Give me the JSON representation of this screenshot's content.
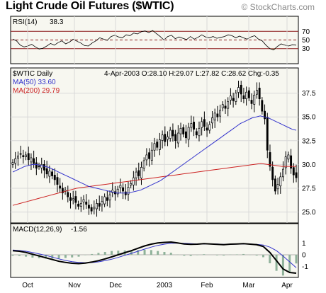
{
  "header": {
    "title": "Light Crude Oil Futures ($WTIC)",
    "brand": "© StockCharts.com"
  },
  "colors": {
    "panel_bg": "#f7f7f0",
    "grid": "#d8d8d8",
    "rsi_band": "#8b1a1a",
    "ma50": "#3333cc",
    "ma200": "#cc2222",
    "price": "#000000",
    "macd_hist": "#8fb29a",
    "rsi_fill": "#b59a6a"
  },
  "chart_data": [
    {
      "type": "line",
      "panel": "rsi",
      "label": "RSI(14)",
      "value_text": "38.3",
      "ylim": [
        0,
        100
      ],
      "levels": [
        30,
        50,
        70
      ],
      "y_ticks": [
        "70",
        "50",
        "30"
      ],
      "series": [
        {
          "values": [
            52,
            48,
            38,
            34,
            36,
            40,
            34,
            29,
            31,
            36,
            42,
            38,
            44,
            48,
            41,
            45,
            52,
            47,
            43,
            37,
            36,
            43,
            48,
            55,
            52,
            49,
            58,
            61,
            57,
            55,
            62,
            60,
            66,
            64,
            69,
            71,
            67,
            72,
            65,
            58,
            50,
            58,
            61,
            53,
            57,
            54,
            51,
            58,
            52,
            56,
            62,
            57,
            55,
            58,
            54,
            56,
            58,
            62,
            60,
            55,
            59,
            55,
            52,
            57,
            60,
            52,
            48,
            38,
            30,
            27,
            35,
            41,
            38,
            36,
            39,
            38
          ]
        }
      ]
    },
    {
      "type": "candlestick",
      "panel": "price",
      "symbol_label": "$WTIC Daily",
      "quote": "4-Apr-2003 O:28.10 H:29.07 L:27.82 C:28.62 Chg:-0.35",
      "ma50_label": "MA(50) 33.60",
      "ma200_label": "MA(200) 29.79",
      "ylim": [
        24,
        40
      ],
      "y_ticks": [
        "37.5",
        "35.0",
        "32.5",
        "30.0",
        "27.5",
        "25.0"
      ],
      "x_ticks": [
        "Oct",
        "Nov",
        "Dec",
        "2003",
        "Feb",
        "Mar",
        "Apr"
      ],
      "close": [
        30.2,
        30.6,
        30.9,
        31.1,
        30.8,
        31.0,
        30.5,
        30.7,
        30.1,
        29.6,
        29.8,
        30.0,
        29.4,
        29.0,
        29.3,
        28.8,
        28.4,
        27.9,
        27.5,
        27.0,
        27.3,
        26.6,
        26.2,
        26.4,
        26.0,
        25.6,
        25.9,
        26.3,
        25.8,
        25.4,
        25.1,
        25.5,
        25.9,
        25.6,
        26.1,
        26.6,
        26.2,
        26.8,
        27.3,
        26.9,
        27.4,
        27.8,
        27.2,
        26.8,
        27.6,
        28.0,
        28.6,
        29.2,
        28.8,
        29.7,
        30.4,
        31.0,
        30.6,
        31.5,
        32.2,
        31.8,
        32.6,
        33.1,
        32.4,
        32.9,
        33.6,
        33.0,
        32.5,
        33.3,
        33.8,
        33.2,
        32.8,
        33.9,
        34.3,
        33.7,
        33.1,
        33.8,
        34.5,
        34.0,
        33.6,
        34.2,
        34.9,
        35.4,
        35.0,
        35.7,
        36.3,
        35.9,
        36.6,
        37.2,
        36.7,
        37.5,
        38.1,
        37.4,
        36.9,
        37.6,
        37.0,
        36.4,
        37.3,
        37.8,
        36.9,
        35.6,
        34.8,
        31.5,
        29.8,
        28.4,
        27.2,
        27.9,
        28.7,
        29.5,
        30.8,
        31.0,
        29.6,
        28.9,
        28.6
      ],
      "ma50": [
        29.2,
        29.4,
        29.6,
        29.8,
        29.9,
        30.0,
        30.0,
        29.9,
        29.8,
        29.7,
        29.5,
        29.3,
        29.1,
        28.9,
        28.7,
        28.5,
        28.3,
        28.1,
        27.9,
        27.7,
        27.6,
        27.5,
        27.4,
        27.3,
        27.2,
        27.1,
        27.0,
        27.0,
        27.0,
        27.0,
        27.1,
        27.2,
        27.3,
        27.5,
        27.7,
        27.9,
        28.1,
        28.3,
        28.6,
        28.9,
        29.2,
        29.5,
        29.8,
        30.1,
        30.4,
        30.7,
        31.0,
        31.3,
        31.6,
        31.9,
        32.2,
        32.5,
        32.8,
        33.1,
        33.4,
        33.7,
        34.0,
        34.3,
        34.5,
        34.7,
        34.9,
        35.0,
        35.1,
        35.0,
        34.9,
        34.7,
        34.5,
        34.3,
        34.1,
        33.9,
        33.7,
        33.6
      ],
      "ma200": [
        25.7,
        25.9,
        26.1,
        26.3,
        26.5,
        26.7,
        26.9,
        27.1,
        27.3,
        27.5,
        27.6,
        27.7,
        27.8,
        27.9,
        28.0,
        28.1,
        28.2,
        28.3,
        28.4,
        28.5,
        28.6,
        28.7,
        28.8,
        28.9,
        29.0,
        29.1,
        29.2,
        29.3,
        29.4,
        29.5,
        29.6,
        29.7,
        29.8,
        29.9,
        30.0,
        30.1,
        30.0,
        29.9,
        29.8,
        29.8,
        29.8
      ]
    },
    {
      "type": "line",
      "panel": "macd",
      "label": "MACD(12,26,9)",
      "value_text": "-1.56",
      "ylim": [
        -1.8,
        1.8
      ],
      "y_ticks": [
        "1",
        "0",
        "-1"
      ],
      "series": [
        {
          "name": "MACD",
          "values": [
            0.35,
            0.3,
            0.2,
            0.05,
            -0.1,
            -0.25,
            -0.4,
            -0.55,
            -0.65,
            -0.72,
            -0.75,
            -0.7,
            -0.62,
            -0.5,
            -0.35,
            -0.18,
            0.0,
            0.18,
            0.35,
            0.55,
            0.75,
            0.9,
            1.0,
            1.05,
            1.08,
            1.0,
            0.92,
            0.88,
            0.9,
            0.95,
            0.92,
            0.88,
            0.85,
            0.9,
            0.92,
            0.95,
            0.9,
            0.85,
            0.7,
            0.2,
            -0.5,
            -1.2,
            -1.5,
            -1.56
          ]
        },
        {
          "name": "Signal",
          "values": [
            0.4,
            0.36,
            0.3,
            0.2,
            0.08,
            -0.05,
            -0.2,
            -0.35,
            -0.48,
            -0.58,
            -0.65,
            -0.68,
            -0.66,
            -0.6,
            -0.5,
            -0.38,
            -0.22,
            -0.05,
            0.12,
            0.3,
            0.48,
            0.65,
            0.8,
            0.9,
            0.97,
            0.99,
            0.97,
            0.94,
            0.92,
            0.92,
            0.92,
            0.91,
            0.89,
            0.89,
            0.9,
            0.91,
            0.91,
            0.89,
            0.83,
            0.65,
            0.35,
            -0.1,
            -0.6,
            -1.1
          ]
        }
      ]
    }
  ]
}
